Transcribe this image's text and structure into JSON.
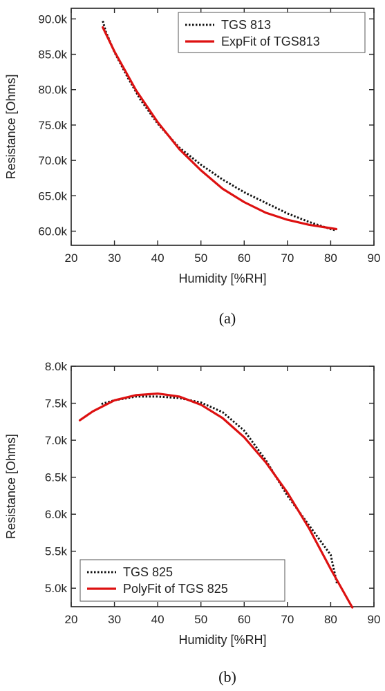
{
  "chart_data": [
    {
      "type": "line",
      "caption": "(a)",
      "xlabel": "Humidity [%RH]",
      "ylabel": "Resistance [Ohms]",
      "xlim": [
        20,
        90
      ],
      "ylim": [
        58000,
        91500
      ],
      "x_ticks": [
        20,
        30,
        40,
        50,
        60,
        70,
        80,
        90
      ],
      "x_tick_labels": [
        "20",
        "30",
        "40",
        "50",
        "60",
        "70",
        "80",
        "90"
      ],
      "y_ticks": [
        60000,
        65000,
        70000,
        75000,
        80000,
        85000,
        90000
      ],
      "y_tick_labels": [
        "60.0k",
        "65.0k",
        "70.0k",
        "75.0k",
        "80.0k",
        "85.0k",
        "90.0k"
      ],
      "legend_position": "top-right",
      "series": [
        {
          "name": "TGS 813",
          "style": "dotted",
          "color": "#111111",
          "x": [
            27.3,
            28,
            30,
            33,
            36,
            40,
            45,
            50,
            55,
            60,
            65,
            70,
            75,
            80,
            81.3
          ],
          "y": [
            89700,
            88200,
            85300,
            81800,
            78600,
            75200,
            71800,
            69400,
            67300,
            65500,
            64000,
            62500,
            61300,
            60300,
            60100
          ]
        },
        {
          "name": "ExpFit of TGS813",
          "style": "solid",
          "color": "#dd1111",
          "x": [
            27.3,
            30,
            35,
            40,
            45,
            50,
            55,
            60,
            65,
            70,
            75,
            81.3
          ],
          "y": [
            88800,
            85400,
            79900,
            75400,
            71600,
            68600,
            66000,
            64100,
            62600,
            61600,
            60900,
            60300
          ]
        }
      ]
    },
    {
      "type": "line",
      "caption": "(b)",
      "xlabel": "Humidity [%RH]",
      "ylabel": "Resistance [Ohms]",
      "xlim": [
        20,
        90
      ],
      "ylim": [
        4750,
        8000
      ],
      "x_ticks": [
        20,
        30,
        40,
        50,
        60,
        70,
        80,
        90
      ],
      "x_tick_labels": [
        "20",
        "30",
        "40",
        "50",
        "60",
        "70",
        "80",
        "90"
      ],
      "y_ticks": [
        5000,
        5500,
        6000,
        6500,
        7000,
        7500,
        8000
      ],
      "y_tick_labels": [
        "5.0k",
        "5.5k",
        "6.0k",
        "6.5k",
        "7.0k",
        "7.5k",
        "8.0k"
      ],
      "legend_position": "bottom-left",
      "series": [
        {
          "name": "TGS 825",
          "style": "dotted",
          "color": "#111111",
          "x": [
            27,
            30,
            35,
            40,
            45,
            50,
            55,
            60,
            65,
            70,
            75,
            80,
            81.5
          ],
          "y": [
            7490,
            7540,
            7590,
            7590,
            7570,
            7510,
            7380,
            7130,
            6730,
            6250,
            5850,
            5450,
            5050
          ]
        },
        {
          "name": "PolyFit of TGS 825",
          "style": "solid",
          "color": "#dd1111",
          "x": [
            22,
            25,
            30,
            35,
            40,
            45,
            50,
            55,
            60,
            65,
            70,
            75,
            80,
            85
          ],
          "y": [
            7270,
            7390,
            7540,
            7610,
            7630,
            7590,
            7480,
            7300,
            7040,
            6700,
            6290,
            5810,
            5260,
            4740
          ]
        }
      ]
    }
  ]
}
